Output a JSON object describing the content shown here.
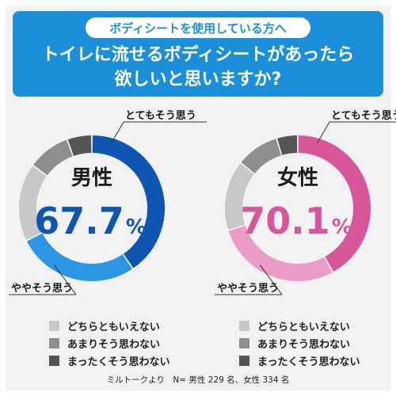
{
  "header": {
    "subtitle": "ボディシートを使用している方へ",
    "title_line1": "トイレに流せるボディシートがあったら",
    "title_line2": "欲しいと思いますか?"
  },
  "colors": {
    "header_bg": "#1b8fd9",
    "background": "#f2f2f2",
    "male_dark": "#0f56b3",
    "male_light": "#2a96e4",
    "female_dark": "#d8579a",
    "female_light": "#ec9cc6",
    "neutral": "#c8c8c8",
    "not_much": "#8e8e8e",
    "not_at_all": "#555555"
  },
  "legend": [
    {
      "label": "どちらともいえない",
      "color": "#c8c8c8"
    },
    {
      "label": "あまりそう思わない",
      "color": "#8e8e8e"
    },
    {
      "label": "まったくそう思わない",
      "color": "#555555"
    }
  ],
  "footnote": "ミルトークより　N= 男性 229 名、女性 334 名",
  "chart_data": [
    {
      "type": "pie",
      "title": "男性",
      "center_value": "67.7",
      "unit": "%",
      "accent": "#0f56b3",
      "labels": {
        "strong": "とてもそう思う",
        "somewhat": "ややそう思う"
      },
      "categories": [
        "とてもそう思う",
        "ややそう思う",
        "どちらともいえない",
        "あまりそう思わない",
        "まったくそう思わない"
      ],
      "values": [
        40.5,
        27.2,
        17.3,
        9.5,
        5.5
      ],
      "colors": [
        "#0f56b3",
        "#2a96e4",
        "#c8c8c8",
        "#8e8e8e",
        "#555555"
      ]
    },
    {
      "type": "pie",
      "title": "女性",
      "center_value": "70.1",
      "unit": "%",
      "accent": "#d8579a",
      "labels": {
        "strong": "とてもそう思う",
        "somewhat": "ややそう思う"
      },
      "categories": [
        "とてもそう思う",
        "ややそう思う",
        "どちらともいえない",
        "あまりそう思わない",
        "まったくそう思わない"
      ],
      "values": [
        42.0,
        28.1,
        15.6,
        9.6,
        4.7
      ],
      "colors": [
        "#d8579a",
        "#ec9cc6",
        "#c8c8c8",
        "#8e8e8e",
        "#555555"
      ]
    }
  ]
}
